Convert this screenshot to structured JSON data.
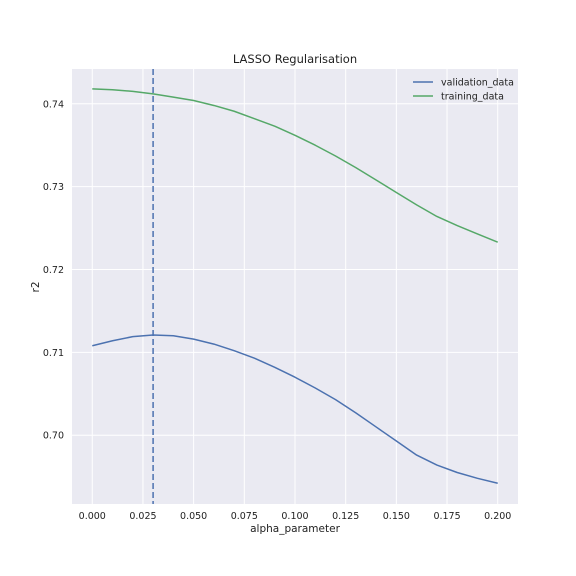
{
  "chart_data": {
    "type": "line",
    "title": "LASSO Regularisation",
    "xlabel": "alpha_parameter",
    "ylabel": "r2",
    "xlim": [
      -0.01,
      0.21
    ],
    "ylim": [
      0.6917,
      0.7442
    ],
    "xticks": [
      0.0,
      0.025,
      0.05,
      0.075,
      0.1,
      0.125,
      0.15,
      0.175,
      0.2
    ],
    "xtick_labels": [
      "0.000",
      "0.025",
      "0.050",
      "0.075",
      "0.100",
      "0.125",
      "0.150",
      "0.175",
      "0.200"
    ],
    "yticks": [
      0.7,
      0.71,
      0.72,
      0.73,
      0.74
    ],
    "ytick_labels": [
      "0.70",
      "0.71",
      "0.72",
      "0.73",
      "0.74"
    ],
    "grid": true,
    "legend_position": "top-right",
    "x": [
      0.0,
      0.01,
      0.02,
      0.03,
      0.04,
      0.05,
      0.06,
      0.07,
      0.08,
      0.09,
      0.1,
      0.11,
      0.12,
      0.13,
      0.14,
      0.15,
      0.16,
      0.17,
      0.18,
      0.19,
      0.2
    ],
    "series": [
      {
        "name": "validation_data",
        "color": "#4c72b0",
        "values": [
          0.7108,
          0.7114,
          0.7119,
          0.7121,
          0.712,
          0.7116,
          0.711,
          0.7102,
          0.7093,
          0.7082,
          0.707,
          0.7057,
          0.7043,
          0.7027,
          0.701,
          0.6993,
          0.6976,
          0.6964,
          0.6955,
          0.6948,
          0.6942
        ]
      },
      {
        "name": "training_data",
        "color": "#55a868",
        "values": [
          0.7418,
          0.7417,
          0.7415,
          0.7412,
          0.7408,
          0.7404,
          0.7398,
          0.7391,
          0.7382,
          0.7373,
          0.7362,
          0.735,
          0.7337,
          0.7323,
          0.7308,
          0.7293,
          0.7278,
          0.7264,
          0.7253,
          0.7243,
          0.7233
        ]
      }
    ],
    "vline": {
      "x": 0.03,
      "style": "dashed",
      "color": "#4c72b0"
    },
    "colors": {
      "background": "#eaeaf2",
      "grid": "#ffffff"
    }
  }
}
